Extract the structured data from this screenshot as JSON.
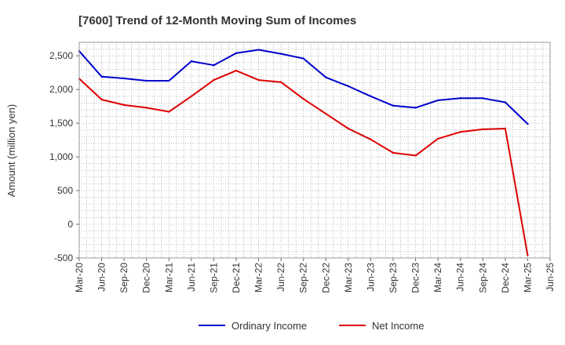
{
  "chart_data": {
    "type": "line",
    "title": "[7600]  Trend of 12-Month Moving Sum of Incomes",
    "ylabel": "Amount (million yen)",
    "xlabel": "",
    "ylim": [
      -500,
      2700
    ],
    "yticks": [
      -500,
      0,
      500,
      1000,
      1500,
      2000,
      2500
    ],
    "ytick_labels": [
      "-500",
      "0",
      "500",
      "1,000",
      "1,500",
      "2,000",
      "2,500"
    ],
    "x_tick_labels": [
      "Mar-20",
      "Jun-20",
      "Sep-20",
      "Dec-20",
      "Mar-21",
      "Jun-21",
      "Sep-21",
      "Dec-21",
      "Mar-22",
      "Jun-22",
      "Sep-22",
      "Dec-22",
      "Mar-23",
      "Jun-23",
      "Sep-23",
      "Dec-23",
      "Mar-24",
      "Jun-24",
      "Sep-24",
      "Dec-24",
      "Mar-25",
      "Jun-25"
    ],
    "grid": true,
    "legend_position": "bottom-center",
    "series": [
      {
        "name": "Ordinary Income",
        "color": "#0000cc",
        "values": [
          2570,
          2190,
          2165,
          2130,
          2130,
          2420,
          2360,
          2540,
          2590,
          2530,
          2460,
          2180,
          2050,
          1900,
          1760,
          1730,
          1840,
          1870,
          1870,
          1810,
          1490
        ]
      },
      {
        "name": "Net Income",
        "color": "#dd0000",
        "values": [
          2160,
          1850,
          1770,
          1730,
          1670,
          1900,
          2140,
          2280,
          2140,
          2110,
          1860,
          1640,
          1420,
          1260,
          1060,
          1020,
          1270,
          1370,
          1410,
          1420,
          -460
        ]
      }
    ]
  }
}
